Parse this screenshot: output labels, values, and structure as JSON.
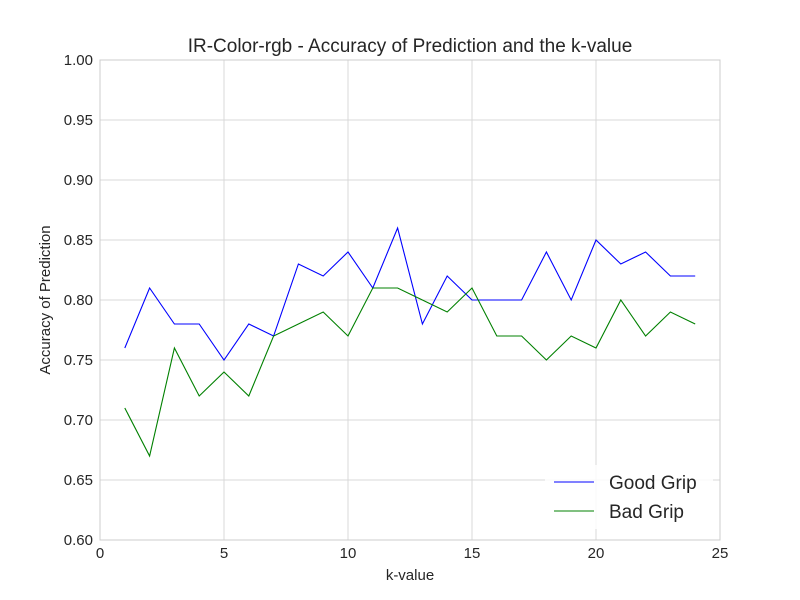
{
  "chart_data": {
    "type": "line",
    "title": "IR-Color-rgb - Accuracy of Prediction and the k-value",
    "xlabel": "k-value",
    "ylabel": "Accuracy of Prediction",
    "xlim": [
      0,
      25
    ],
    "ylim": [
      0.6,
      1.0
    ],
    "xticks": [
      0,
      5,
      10,
      15,
      20,
      25
    ],
    "xtick_labels": [
      "0",
      "5",
      "10",
      "15",
      "20",
      "25"
    ],
    "yticks": [
      0.6,
      0.65,
      0.7,
      0.75,
      0.8,
      0.85,
      0.9,
      0.95,
      1.0
    ],
    "ytick_labels": [
      "0.60",
      "0.65",
      "0.70",
      "0.75",
      "0.80",
      "0.85",
      "0.90",
      "0.95",
      "1.00"
    ],
    "grid": true,
    "legend_position": "bottom-right",
    "x": [
      1,
      2,
      3,
      4,
      5,
      6,
      7,
      8,
      9,
      10,
      11,
      12,
      13,
      14,
      15,
      16,
      17,
      18,
      19,
      20,
      21,
      22,
      23,
      24
    ],
    "series": [
      {
        "name": "Good Grip",
        "color": "#0000ff",
        "values": [
          0.76,
          0.81,
          0.78,
          0.78,
          0.75,
          0.78,
          0.77,
          0.83,
          0.82,
          0.84,
          0.81,
          0.86,
          0.78,
          0.82,
          0.8,
          0.8,
          0.8,
          0.84,
          0.8,
          0.85,
          0.83,
          0.84,
          0.82,
          0.82
        ]
      },
      {
        "name": "Bad Grip",
        "color": "#008000",
        "values": [
          0.71,
          0.67,
          0.76,
          0.72,
          0.74,
          0.72,
          0.77,
          0.78,
          0.79,
          0.77,
          0.81,
          0.81,
          0.8,
          0.79,
          0.81,
          0.77,
          0.77,
          0.75,
          0.77,
          0.76,
          0.8,
          0.77,
          0.79,
          0.78
        ]
      }
    ]
  }
}
